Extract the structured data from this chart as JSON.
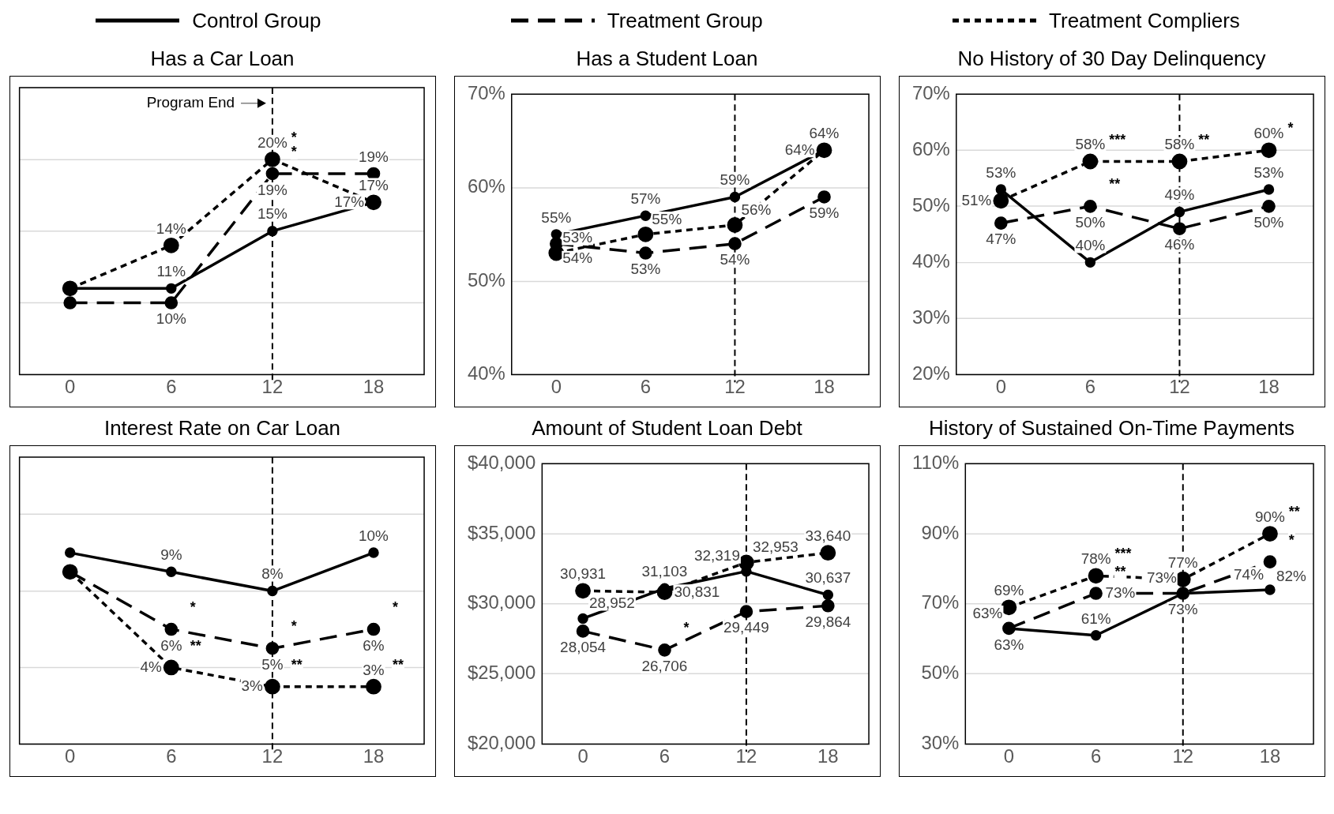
{
  "chart_data": [
    {
      "type": "line",
      "title": "Has a Car Loan",
      "x": [
        0,
        6,
        12,
        18
      ],
      "xlim": [
        -3,
        21
      ],
      "xticks": [
        0,
        6,
        12,
        18
      ],
      "ylim": [
        5,
        25
      ],
      "yticks": [
        {
          "value": 5,
          "label": null
        },
        {
          "value": 10,
          "label": null
        },
        {
          "value": 15,
          "label": null
        },
        {
          "value": 20,
          "label": null
        },
        {
          "value": 25,
          "label": null
        }
      ],
      "tick_labels": "x",
      "grid": "y",
      "marker": "circle",
      "legend": "top",
      "series": [
        {
          "name": "Control Group",
          "color": "#000000",
          "line_style": "solid",
          "values": [
            11,
            11,
            15,
            17
          ],
          "value_labels": [
            null,
            "11%",
            "15%",
            "17%"
          ]
        },
        {
          "name": "Treatment Group",
          "color": "#000000",
          "line_style": "dashed",
          "values": [
            10,
            10,
            19,
            19
          ],
          "value_labels": [
            null,
            "10%",
            "19%",
            "19%"
          ]
        },
        {
          "name": "Treatment Compliers",
          "color": "#000000",
          "line_style": "dotted",
          "values": [
            11,
            14,
            20,
            17
          ],
          "value_labels": [
            null,
            "14%",
            "20%",
            "17%"
          ]
        }
      ],
      "ref_lines": [
        {
          "axis": "x",
          "value": 12,
          "label": "Program End",
          "line_style": "dashed",
          "color": "#000000"
        }
      ],
      "annotations": [
        {
          "text": "*",
          "x": 12,
          "y": 20
        },
        {
          "text": "*",
          "x": 12,
          "y": 19
        }
      ]
    },
    {
      "type": "line",
      "title": "Has a Student Loan",
      "x": [
        0,
        6,
        12,
        18
      ],
      "xlim": [
        -3,
        21
      ],
      "xticks": [
        0,
        6,
        12,
        18
      ],
      "ylim": [
        40,
        70
      ],
      "yticks": [
        {
          "value": 40,
          "label": "40%"
        },
        {
          "value": 50,
          "label": "50%"
        },
        {
          "value": 60,
          "label": "60%"
        },
        {
          "value": 70,
          "label": "70%"
        }
      ],
      "grid": "y",
      "marker": "circle",
      "series": [
        {
          "color": "#000000",
          "line_style": "solid",
          "values": [
            55,
            57,
            59,
            64
          ],
          "value_labels": [
            "55%",
            "57%",
            "59%",
            "64%"
          ]
        },
        {
          "color": "#000000",
          "line_style": "dashed",
          "values": [
            54,
            53,
            54,
            59
          ],
          "value_labels": [
            "54%",
            "53%",
            "54%",
            "59%"
          ]
        },
        {
          "color": "#000000",
          "line_style": "dotted",
          "values": [
            53,
            55,
            56,
            64
          ],
          "value_labels": [
            "53%",
            "55%",
            "56%",
            "64%"
          ]
        }
      ],
      "ref_lines": [
        {
          "axis": "x",
          "value": 12,
          "line_style": "dashed",
          "color": "#000000"
        }
      ]
    },
    {
      "type": "line",
      "title": "No History of 30 Day Delinquency",
      "x": [
        0,
        6,
        12,
        18
      ],
      "xlim": [
        -3,
        21
      ],
      "xticks": [
        0,
        6,
        12,
        18
      ],
      "ylim": [
        20,
        70
      ],
      "yticks": [
        {
          "value": 20,
          "label": "20%"
        },
        {
          "value": 30,
          "label": "30%"
        },
        {
          "value": 40,
          "label": "40%"
        },
        {
          "value": 50,
          "label": "50%"
        },
        {
          "value": 60,
          "label": "60%"
        },
        {
          "value": 70,
          "label": "70%"
        }
      ],
      "grid": "y",
      "marker": "circle",
      "series": [
        {
          "color": "#000000",
          "line_style": "solid",
          "values": [
            53,
            40,
            49,
            53
          ],
          "value_labels": [
            "53%",
            "40%",
            "49%",
            "53%"
          ]
        },
        {
          "color": "#000000",
          "line_style": "dashed",
          "values": [
            47,
            50,
            46,
            50
          ],
          "value_labels": [
            "47%",
            "50%",
            "46%",
            "50%"
          ]
        },
        {
          "color": "#000000",
          "line_style": "dotted",
          "values": [
            51,
            58,
            58,
            60
          ],
          "value_labels": [
            "51%",
            "58%",
            "58%",
            "60%"
          ]
        }
      ],
      "ref_lines": [
        {
          "axis": "x",
          "value": 12,
          "line_style": "dashed",
          "color": "#000000"
        }
      ],
      "annotations": [
        {
          "text": "***",
          "x": 6,
          "y": 58
        },
        {
          "text": "**",
          "x": 12,
          "y": 58
        },
        {
          "text": "*",
          "x": 18,
          "y": 60
        },
        {
          "text": "**",
          "x": 6,
          "y": 50
        }
      ]
    },
    {
      "type": "line",
      "title": "Interest Rate on Car Loan",
      "x": [
        0,
        6,
        12,
        18
      ],
      "xlim": [
        -3,
        21
      ],
      "xticks": [
        0,
        6,
        12,
        18
      ],
      "ylim": [
        0,
        15
      ],
      "yticks": [
        {
          "value": 0,
          "label": null
        },
        {
          "value": 4,
          "label": null
        },
        {
          "value": 8,
          "label": null
        },
        {
          "value": 12,
          "label": null
        }
      ],
      "tick_labels": "x",
      "grid": "y",
      "marker": "circle",
      "series": [
        {
          "color": "#000000",
          "line_style": "solid",
          "values": [
            10,
            9,
            8,
            10
          ],
          "value_labels": [
            null,
            "9%",
            "8%",
            "10%"
          ]
        },
        {
          "color": "#000000",
          "line_style": "dashed",
          "values": [
            9,
            6,
            5,
            6
          ],
          "value_labels": [
            null,
            "6%",
            "5%",
            "6%"
          ]
        },
        {
          "color": "#000000",
          "line_style": "dotted",
          "values": [
            9,
            4,
            3,
            3
          ],
          "value_labels": [
            null,
            "4%",
            "3%",
            "3%"
          ]
        }
      ],
      "ref_lines": [
        {
          "axis": "x",
          "value": 12,
          "line_style": "dashed",
          "color": "#000000"
        }
      ],
      "annotations": [
        {
          "text": "*",
          "x": 6,
          "y": 6
        },
        {
          "text": "*",
          "x": 12,
          "y": 5
        },
        {
          "text": "*",
          "x": 18,
          "y": 6
        },
        {
          "text": "**",
          "x": 6,
          "y": 4
        },
        {
          "text": "**",
          "x": 12,
          "y": 3
        },
        {
          "text": "**",
          "x": 18,
          "y": 3
        }
      ]
    },
    {
      "type": "line",
      "title": "Amount of Student Loan Debt",
      "x": [
        0,
        6,
        12,
        18
      ],
      "xlim": [
        -3,
        21
      ],
      "xticks": [
        0,
        6,
        12,
        18
      ],
      "ylim": [
        20000,
        40000
      ],
      "yticks": [
        {
          "value": 20000,
          "label": "$20,000"
        },
        {
          "value": 25000,
          "label": "$25,000"
        },
        {
          "value": 30000,
          "label": "$30,000"
        },
        {
          "value": 35000,
          "label": "$35,000"
        },
        {
          "value": 40000,
          "label": "$40,000"
        }
      ],
      "grid": "y",
      "marker": "circle",
      "series": [
        {
          "color": "#000000",
          "line_style": "solid",
          "values": [
            28952,
            31103,
            32319,
            30637
          ],
          "value_labels": [
            "28,952",
            "31,103",
            "32,319",
            "30,637"
          ]
        },
        {
          "color": "#000000",
          "line_style": "dashed",
          "values": [
            28054,
            26706,
            29449,
            29864
          ],
          "value_labels": [
            "28,054",
            "26,706",
            "29,449",
            "29,864"
          ]
        },
        {
          "color": "#000000",
          "line_style": "dotted",
          "values": [
            30931,
            30831,
            32953,
            33640
          ],
          "value_labels": [
            "30,931",
            "30,831",
            "32,953",
            "33,640"
          ]
        }
      ],
      "ref_lines": [
        {
          "axis": "x",
          "value": 12,
          "line_style": "dashed",
          "color": "#000000"
        }
      ],
      "annotations": [
        {
          "text": "*",
          "x": 6,
          "y": 26706
        }
      ]
    },
    {
      "type": "line",
      "title": "History of Sustained On-Time Payments",
      "x": [
        0,
        6,
        12,
        18
      ],
      "xlim": [
        -3,
        21
      ],
      "xticks": [
        0,
        6,
        12,
        18
      ],
      "ylim": [
        30,
        110
      ],
      "yticks": [
        {
          "value": 30,
          "label": "30%"
        },
        {
          "value": 50,
          "label": "50%"
        },
        {
          "value": 70,
          "label": "70%"
        },
        {
          "value": 90,
          "label": "90%"
        },
        {
          "value": 110,
          "label": "110%"
        }
      ],
      "grid": "y",
      "marker": "circle",
      "series": [
        {
          "color": "#000000",
          "line_style": "solid",
          "values": [
            63,
            61,
            73,
            74
          ],
          "value_labels": [
            "63%",
            "61%",
            "73%",
            "74%"
          ]
        },
        {
          "color": "#000000",
          "line_style": "dashed",
          "values": [
            63,
            73,
            73,
            82
          ],
          "value_labels": [
            "63%",
            "73%",
            "73%",
            "82%"
          ]
        },
        {
          "color": "#000000",
          "line_style": "dotted",
          "values": [
            69,
            78,
            77,
            90
          ],
          "value_labels": [
            "69%",
            "78%",
            "77%",
            "90%"
          ]
        }
      ],
      "ref_lines": [
        {
          "axis": "x",
          "value": 12,
          "line_style": "dashed",
          "color": "#000000"
        }
      ],
      "annotations": [
        {
          "text": "***",
          "x": 6,
          "y": 78
        },
        {
          "text": "**",
          "x": 6,
          "y": 73
        },
        {
          "text": "**",
          "x": 18,
          "y": 90
        },
        {
          "text": "*",
          "x": 18,
          "y": 82
        }
      ]
    }
  ]
}
